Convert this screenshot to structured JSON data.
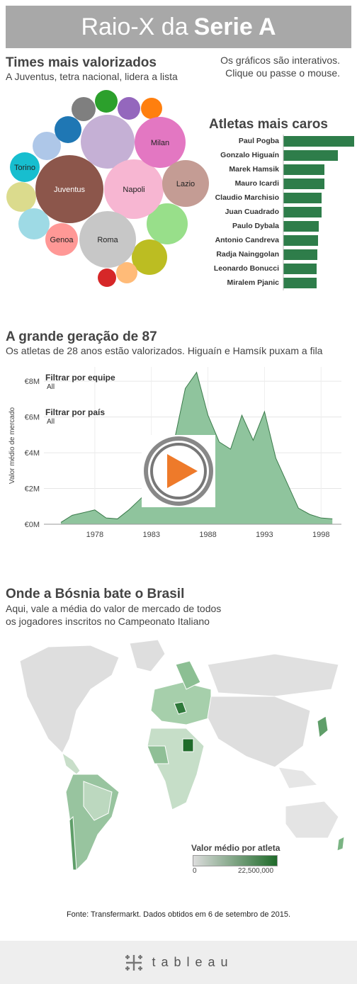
{
  "header": {
    "title_prefix": "Raio-X da",
    "title_bold": "Serie A"
  },
  "section1": {
    "title": "Times mais valorizados",
    "subtitle": "A Juventus, tetra nacional, lidera a lista",
    "note": "Os gráficos são interativos. Clique ou passe o mouse."
  },
  "section2": {
    "title": "Atletas mais caros"
  },
  "section3": {
    "title": "A grande geração de 87",
    "subtitle": "Os atletas de 28 anos estão valorizados. Higuaín e Hamsík puxam a fila",
    "filter_team_label": "Filtrar por equipe",
    "filter_team_value": "All",
    "filter_country_label": "Filtrar por país",
    "filter_country_value": "All"
  },
  "section4": {
    "title": "Onde a Bósnia bate o Brasil",
    "subtitle_line1": "Aqui, vale a média do valor de mercado de todos",
    "subtitle_line2": "os jogadores inscritos no Campeonato Italiano",
    "legend_title": "Valor médio por atleta",
    "legend_min": "0",
    "legend_max": "22,500,000",
    "colors": {
      "low": "#dcdcdc",
      "high": "#1f6b2a"
    }
  },
  "footer": {
    "source": "Fonte: Transfermarkt. Dados obtidos em 6 de setembro de 2015.",
    "brand": "tableau"
  },
  "chart_data": [
    {
      "type": "bubble",
      "labeled_bubbles": [
        {
          "name": "Juventus",
          "color": "#8c564b",
          "rank": 1
        },
        {
          "name": "Napoli",
          "color": "#f7b6d2",
          "rank": 2
        },
        {
          "name": "Roma",
          "color": "#c7c7c7",
          "rank": 3
        },
        {
          "name": "Milan",
          "color": "#e377c2",
          "rank": 4
        },
        {
          "name": "Lazio",
          "color": "#c49c94",
          "rank": 5
        },
        {
          "name": "Genoa",
          "color": "#ff9896",
          "rank": 6
        },
        {
          "name": "Torino",
          "color": "#17becf",
          "rank": 7
        }
      ],
      "unlabeled_colors": [
        "#c5b0d5",
        "#98df8a",
        "#bcbd22",
        "#dbdb8d",
        "#9edae5",
        "#aec7e8",
        "#1f77b4",
        "#7f7f7f",
        "#2ca02c",
        "#9467bd",
        "#ff7f0e",
        "#ffbb78",
        "#d62728"
      ]
    },
    {
      "type": "bar",
      "orientation": "horizontal",
      "color": "#2e7d4a",
      "categories": [
        "Paul Pogba",
        "Gonzalo Higuaín",
        "Marek Hamsik",
        "Mauro Icardi",
        "Claudio Marchisio",
        "Juan Cuadrado",
        "Paulo Dybala",
        "Antonio Candreva",
        "Radja Nainggolan",
        "Leonardo Bonucci",
        "Miralem Pjanic"
      ],
      "values": [
        100,
        77,
        58,
        58,
        54,
        54,
        50,
        49,
        48,
        47,
        47
      ]
    },
    {
      "type": "area",
      "ylabel": "Valor médio de mercado",
      "yticks": [
        "€0M",
        "€2M",
        "€4M",
        "€6M",
        "€8M"
      ],
      "ylim": [
        0,
        8.8
      ],
      "xticks": [
        1978,
        1983,
        1988,
        1993,
        1998
      ],
      "xlim": [
        1973.5,
        1999.8
      ],
      "color_fill": "#8fc49d",
      "color_line": "#3a7a4a",
      "x": [
        1975,
        1976,
        1978,
        1979,
        1980,
        1981,
        1982,
        1983,
        1984,
        1985,
        1986,
        1987,
        1988,
        1989,
        1990,
        1991,
        1992,
        1993,
        1994,
        1995,
        1996,
        1997,
        1998,
        1999
      ],
      "y": [
        0.1,
        0.5,
        0.8,
        0.35,
        0.3,
        0.8,
        1.4,
        2.0,
        3.2,
        4.6,
        7.6,
        8.5,
        6.1,
        4.6,
        4.2,
        6.1,
        4.7,
        6.3,
        3.7,
        2.3,
        0.9,
        0.55,
        0.35,
        0.3
      ]
    }
  ]
}
